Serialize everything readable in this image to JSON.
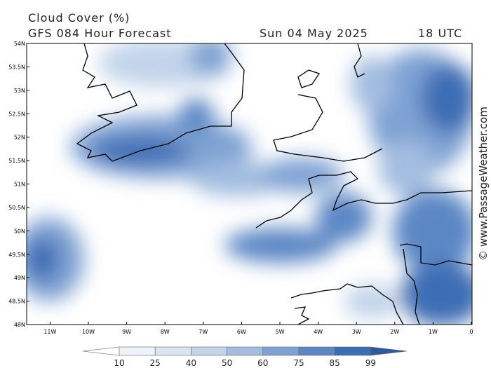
{
  "header": {
    "title": "Cloud Cover (%)",
    "subtitle": "GFS 084 Hour Forecast",
    "date": "Sun 04 May 2025",
    "time": "18 UTC"
  },
  "map": {
    "lat_labels": [
      "54N",
      "53.5N",
      "53N",
      "52.5N",
      "52N",
      "51.5N",
      "51N",
      "50.5N",
      "50N",
      "49.5N",
      "49N",
      "48.5N",
      "48N"
    ],
    "lon_labels": [
      "11W",
      "10W",
      "9W",
      "8W",
      "7W",
      "6W",
      "5W",
      "4W",
      "3W",
      "2W",
      "1W",
      "0"
    ]
  },
  "colorbar": {
    "labels": [
      "10",
      "25",
      "40",
      "50",
      "60",
      "75",
      "85",
      "99"
    ],
    "colors": [
      "#ffffff",
      "#eef3f9",
      "#dbe5f2",
      "#c2d4ea",
      "#a3bde0",
      "#7fa2d3",
      "#5b87c5",
      "#3d6db4",
      "#2d5a9c"
    ]
  },
  "credit": "© www.PassageWeather.com"
}
